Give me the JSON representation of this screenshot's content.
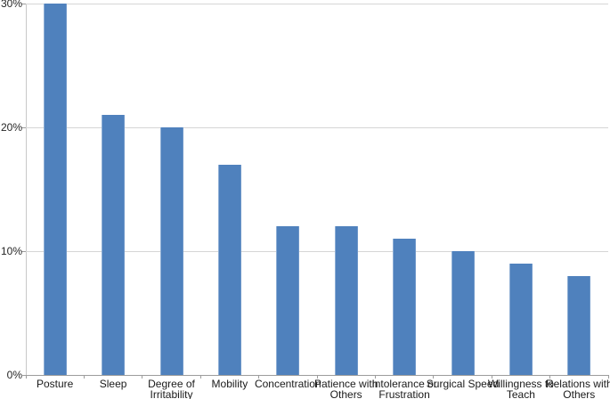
{
  "chart_data": {
    "type": "bar",
    "categories": [
      "Posture",
      "Sleep",
      "Degree of Irritability",
      "Mobility",
      "Concentration",
      "Patience with Others",
      "Intolerance or Frustration",
      "Surgical Speed",
      "Willingness to Teach",
      "Relations with Others"
    ],
    "values": [
      30,
      21,
      20,
      17,
      12,
      12,
      11,
      10,
      9,
      8
    ],
    "value_unit": "%",
    "ylim": [
      0,
      30
    ],
    "ytick_step": 10,
    "ytick_labels": [
      "0%",
      "10%",
      "20%",
      "30%"
    ],
    "ytick_values": [
      0,
      10,
      20,
      30
    ],
    "grid": true,
    "legend": false
  },
  "colors": {
    "bar_fill": "#4F81BD",
    "gridline": "#D6D6D6",
    "axis_line": "#9C9C9C",
    "y_axis_line": "#C9C9C9",
    "label_text": "#1A1A1A",
    "background": "#FFFFFF"
  }
}
